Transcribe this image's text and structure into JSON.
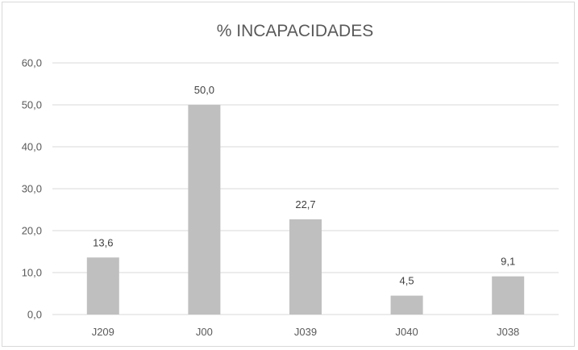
{
  "chart_data": {
    "type": "bar",
    "title": "% INCAPACIDADES",
    "categories": [
      "J209",
      "J00",
      "J039",
      "J040",
      "J038"
    ],
    "values": [
      13.6,
      50.0,
      22.7,
      4.5,
      9.1
    ],
    "value_labels": [
      "13,6",
      "50,0",
      "22,7",
      "4,5",
      "9,1"
    ],
    "y_ticks": [
      0,
      10,
      20,
      30,
      40,
      50,
      60
    ],
    "y_tick_labels": [
      "0,0",
      "10,0",
      "20,0",
      "30,0",
      "40,0",
      "50,0",
      "60,0"
    ],
    "ylim": [
      0,
      60
    ],
    "grid": true,
    "legend": "none",
    "bar_color": "#bfbfbf",
    "grid_color": "#d9d9d9",
    "text_color": "#595959"
  }
}
